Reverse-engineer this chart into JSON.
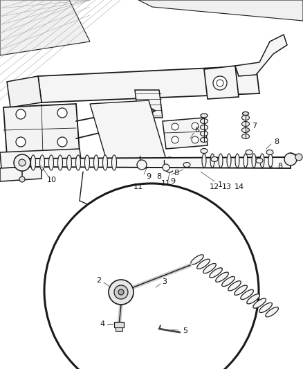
{
  "bg_color": "#ffffff",
  "fig_width": 4.38,
  "fig_height": 5.33,
  "dpi": 100,
  "image_b64": ""
}
